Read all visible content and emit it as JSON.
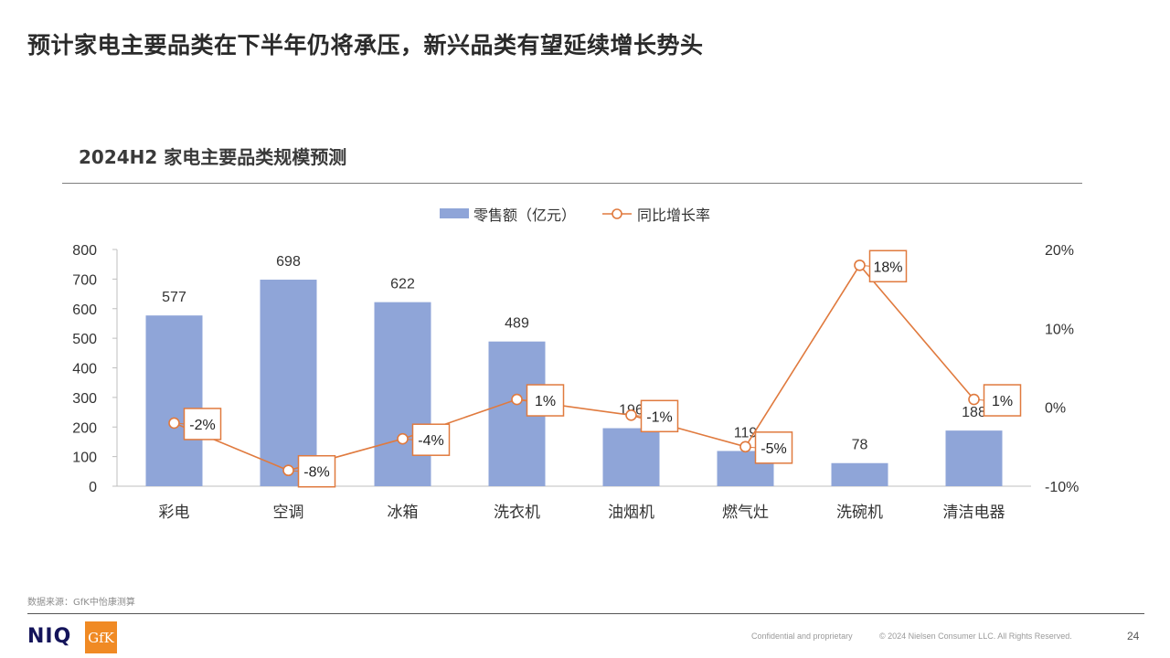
{
  "page": {
    "title": "预计家电主要品类在下半年仍将承压，新兴品类有望延续增长势头",
    "source": "数据来源：GfK中怡康测算",
    "confidential": "Confidential and proprietary",
    "copyright": "© 2024 Nielsen Consumer LLC. All Rights Reserved.",
    "page_number": "24",
    "logo_niq": "NIQ",
    "logo_gfk": "GfK"
  },
  "chart_data": {
    "type": "bar",
    "title": "2024H2 家电主要品类规模预测",
    "categories": [
      "彩电",
      "空调",
      "冰箱",
      "洗衣机",
      "油烟机",
      "燃气灶",
      "洗碗机",
      "清洁电器"
    ],
    "series": [
      {
        "name": "零售额（亿元）",
        "type": "bar",
        "axis": "left",
        "color": "#8fa5d8",
        "values": [
          577,
          698,
          622,
          489,
          196,
          119,
          78,
          188
        ],
        "labels": [
          "577",
          "698",
          "622",
          "489",
          "196",
          "119",
          "78",
          "188"
        ]
      },
      {
        "name": "同比增长率",
        "type": "line",
        "axis": "right",
        "color": "#e07a3e",
        "values": [
          -2,
          -8,
          -4,
          1,
          -1,
          -5,
          18,
          1
        ],
        "labels": [
          "-2%",
          "-8%",
          "-4%",
          "1%",
          "-1%",
          "-5%",
          "18%",
          "1%"
        ]
      }
    ],
    "left_axis": {
      "ylim": [
        0,
        800
      ],
      "ticks": [
        "0",
        "100",
        "200",
        "300",
        "400",
        "500",
        "600",
        "700",
        "800"
      ]
    },
    "right_axis": {
      "ylim": [
        -10,
        20
      ],
      "ticks": [
        "-10%",
        "0%",
        "10%",
        "20%"
      ]
    },
    "legend": "top-center",
    "grid": false
  }
}
